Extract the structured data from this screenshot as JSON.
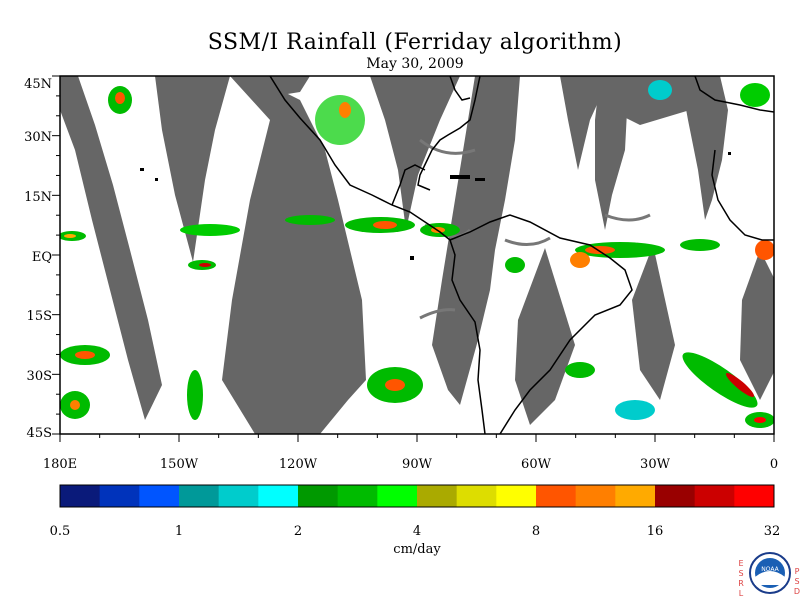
{
  "title": "SSM/I Rainfall (Ferriday algorithm)",
  "date": "May 30, 2009",
  "lat_labels": [
    "45N",
    "30N",
    "15N",
    "EQ",
    "15S",
    "30S",
    "45S"
  ],
  "lon_labels": [
    "180E",
    "150W",
    "120W",
    "90W",
    "60W",
    "30W",
    "0"
  ],
  "colorbar": {
    "colors": [
      "#0a1a7a",
      "#0033bb",
      "#0055ff",
      "#009999",
      "#00cccc",
      "#00ffff",
      "#009900",
      "#00bb00",
      "#00ff00",
      "#aaaa00",
      "#dddd00",
      "#ffff00",
      "#ff5500",
      "#ff7f00",
      "#ffaa00",
      "#990000",
      "#cc0000",
      "#ff0000"
    ],
    "tick_labels": [
      "0.5",
      "1",
      "2",
      "4",
      "8",
      "16",
      "32"
    ],
    "unit": "cm/day"
  },
  "logo": {
    "left_letters": "ESRL",
    "right_letters": "PSD",
    "inner_text": "NOAA"
  }
}
